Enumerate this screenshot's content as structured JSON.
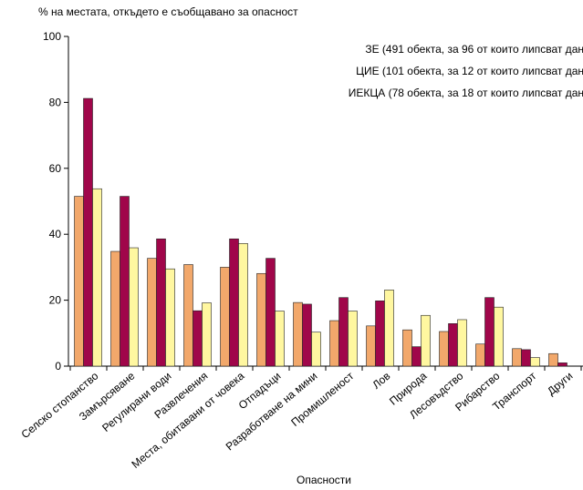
{
  "chart_data": {
    "type": "bar",
    "ylabel": "% на местата, откъдето е съобщавано за опасност",
    "xlabel": "Опасности",
    "ylim": [
      0,
      100
    ],
    "yticks": [
      0,
      20,
      40,
      60,
      80,
      100
    ],
    "grid": false,
    "legend_position": "top-right",
    "categories": [
      "Селско стопанство",
      "Замърсяване",
      "Регулирани води",
      "Развлечения",
      "Места, обитавани от човека",
      "Отпадъци",
      "Разработване на мини",
      "Промишленост",
      "Лов",
      "Природа",
      "Лесовъдство",
      "Рибарство",
      "Транспорт",
      "Други"
    ],
    "series": [
      {
        "name": "ЗЕ (491 обекта, за 96 от които липсват дан",
        "color": "#f2a86b",
        "values": [
          51.5,
          34.8,
          32.7,
          30.8,
          30.0,
          28.1,
          19.3,
          13.8,
          12.2,
          11.0,
          10.5,
          6.7,
          5.3,
          3.8
        ]
      },
      {
        "name": "ЦИЕ (101 обекта, за 12 от които липсват дан",
        "color": "#a0064a",
        "values": [
          81.2,
          51.5,
          38.6,
          16.8,
          38.6,
          32.7,
          18.8,
          20.8,
          19.8,
          5.9,
          12.9,
          20.8,
          5.0,
          1.0
        ]
      },
      {
        "name": "ИЕКЦА (78 обекта, за 18 от които липсват дан",
        "color": "#fff7a0",
        "values": [
          53.8,
          35.9,
          29.5,
          19.2,
          37.2,
          16.7,
          10.3,
          16.7,
          23.1,
          15.4,
          14.1,
          17.9,
          2.6,
          0.0
        ]
      }
    ]
  }
}
